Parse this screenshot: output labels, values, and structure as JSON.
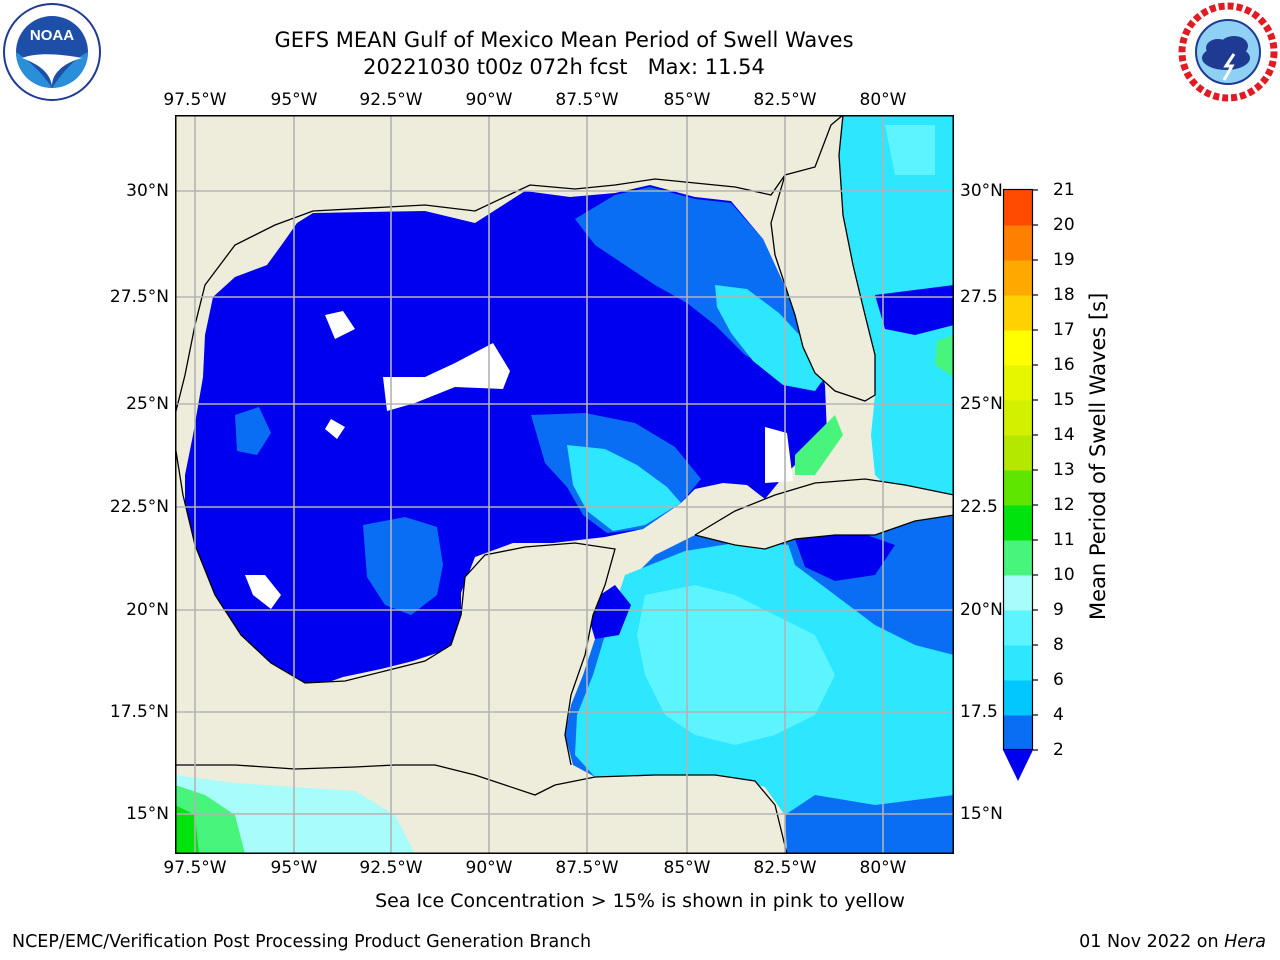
{
  "title": {
    "line1": "GEFS MEAN Gulf of Mexico Mean Period of Swell Waves",
    "line2": "20221030 t00z 072h fcst   Max: 11.54"
  },
  "logos": {
    "left": "noaa-logo",
    "right": "national-weather-service-logo"
  },
  "map": {
    "region": "Gulf of Mexico",
    "longitude_labels": [
      "97.5°W",
      "95°W",
      "92.5°W",
      "90°W",
      "87.5°W",
      "85°W",
      "82.5°W",
      "80°W"
    ],
    "latitude_labels_left": [
      "30°N",
      "27.5°N",
      "25°N",
      "22.5°N",
      "20°N",
      "17.5°N",
      "15°N"
    ],
    "latitude_labels_right": [
      "30°N",
      "27.5",
      "25°N",
      "22.5",
      "20°N",
      "17.5",
      "15°N"
    ],
    "lon_range": [
      -98,
      -78.4
    ],
    "lat_range": [
      14.1,
      31.9
    ],
    "colors": {
      "land": "#eeeddc",
      "grid": "#b3b3b3",
      "coast": "#000000"
    }
  },
  "colorbar": {
    "label": "Mean Period of Swell Waves [s]",
    "ticks": [
      "2",
      "4",
      "6",
      "8",
      "9",
      "10",
      "11",
      "12",
      "13",
      "14",
      "15",
      "16",
      "17",
      "18",
      "19",
      "20",
      "21"
    ],
    "colors": [
      "#0a6ef5",
      "#00c8ff",
      "#2de6ff",
      "#5cf4ff",
      "#a8fcf9",
      "#48f57c",
      "#00e30d",
      "#5ee600",
      "#b4e800",
      "#d2f000",
      "#e6f500",
      "#ffff00",
      "#ffd200",
      "#ffa800",
      "#ff8000",
      "#ff4a00",
      "#ff1400"
    ],
    "extend_color": "#0000f0"
  },
  "footer": {
    "note": "Sea Ice Concentration > 15% is shown in pink to yellow",
    "credit_left": "NCEP/EMC/Verification Post Processing Product Generation Branch",
    "credit_right_date": "01 Nov 2022 on ",
    "credit_right_host": "Hera"
  }
}
